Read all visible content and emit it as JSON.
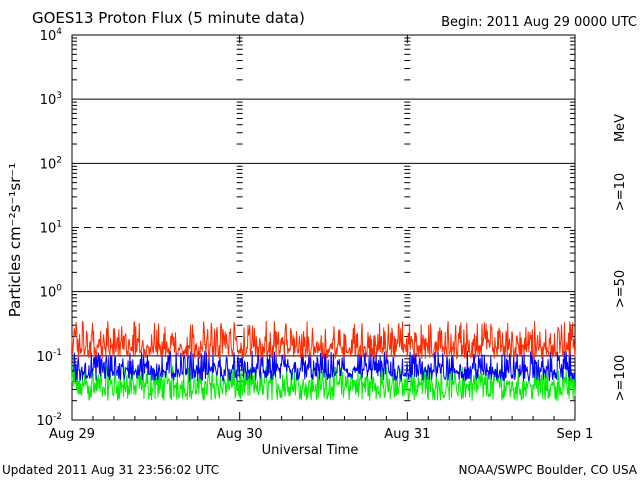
{
  "chart_data": {
    "type": "line",
    "title": "GOES13 Proton Flux (5 minute data)",
    "begin_label": "Begin: 2011 Aug 29 0000 UTC",
    "xlabel": "Universal Time",
    "ylabel": "Particles cm⁻²s⁻¹sr⁻¹",
    "unit_label": "MeV",
    "yscale": "log",
    "ylim": [
      0.01,
      10000
    ],
    "xlim_days": [
      0,
      3
    ],
    "x_ticks": [
      "Aug 29",
      "Aug 30",
      "Aug 31",
      "Sep 1"
    ],
    "y_ticks": [
      {
        "base": "10",
        "exp": "4"
      },
      {
        "base": "10",
        "exp": "3"
      },
      {
        "base": "10",
        "exp": "2"
      },
      {
        "base": "10",
        "exp": "1"
      },
      {
        "base": "10",
        "exp": "0"
      },
      {
        "base": "10",
        "exp": "-1"
      },
      {
        "base": "10",
        "exp": "-2"
      }
    ],
    "thresholds": [
      {
        "value": 1000,
        "style": "solid"
      },
      {
        "value": 100,
        "style": "solid"
      },
      {
        "value": 10,
        "style": "dashed"
      },
      {
        "value": 1,
        "style": "solid"
      },
      {
        "value": 0.1,
        "style": "solid"
      }
    ],
    "series": [
      {
        "name": ">=10",
        "color": "#ff2a00",
        "typical": 0.14,
        "range": [
          0.09,
          0.35
        ]
      },
      {
        "name": ">=50",
        "color": "#0000ff",
        "typical": 0.06,
        "range": [
          0.04,
          0.12
        ]
      },
      {
        "name": ">=100",
        "color": "#00ee00",
        "typical": 0.035,
        "range": [
          0.02,
          0.07
        ]
      }
    ]
  },
  "footer": {
    "updated": "Updated 2011 Aug 31 23:56:02 UTC",
    "credit": "NOAA/SWPC Boulder, CO USA"
  }
}
